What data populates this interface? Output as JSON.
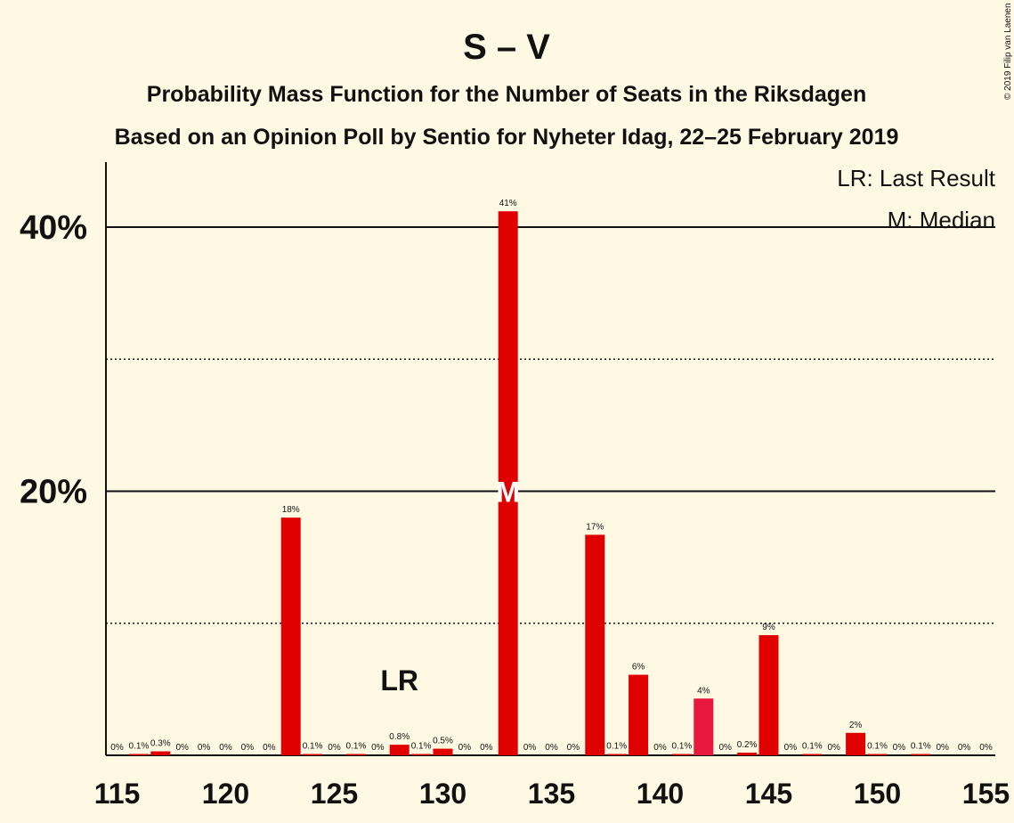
{
  "chart_data": {
    "type": "bar",
    "title": "S – V",
    "subtitle_1": "Probability Mass Function for the Number of Seats in the Riksdagen",
    "subtitle_2": "Based on an Opinion Poll by Sentio for Nyheter Idag, 22–25 February 2019",
    "copyright": "© 2019 Filip van Laenen",
    "legend": {
      "placement": "top-right",
      "last_result": "LR: Last Result",
      "median": "M: Median"
    },
    "xlim": [
      115,
      155
    ],
    "ylim": [
      0,
      45
    ],
    "x_ticks": [
      115,
      120,
      125,
      130,
      135,
      140,
      145,
      150,
      155
    ],
    "y_ticks_major": [
      {
        "value": 20,
        "label": "20%"
      },
      {
        "value": 40,
        "label": "40%"
      }
    ],
    "y_ticks_minor": [
      10,
      30
    ],
    "bars": [
      {
        "x": 115,
        "value": 0,
        "label": "0%"
      },
      {
        "x": 116,
        "value": 0.1,
        "label": "0.1%"
      },
      {
        "x": 117,
        "value": 0.3,
        "label": "0.3%"
      },
      {
        "x": 118,
        "value": 0,
        "label": "0%"
      },
      {
        "x": 119,
        "value": 0,
        "label": "0%"
      },
      {
        "x": 120,
        "value": 0,
        "label": "0%"
      },
      {
        "x": 121,
        "value": 0,
        "label": "0%"
      },
      {
        "x": 122,
        "value": 0,
        "label": "0%"
      },
      {
        "x": 123,
        "value": 18,
        "label": "18%"
      },
      {
        "x": 124,
        "value": 0.1,
        "label": "0.1%"
      },
      {
        "x": 125,
        "value": 0,
        "label": "0%"
      },
      {
        "x": 126,
        "value": 0.1,
        "label": "0.1%"
      },
      {
        "x": 127,
        "value": 0,
        "label": "0%"
      },
      {
        "x": 128,
        "value": 0.8,
        "label": "0.8%"
      },
      {
        "x": 129,
        "value": 0.1,
        "label": "0.1%"
      },
      {
        "x": 130,
        "value": 0.5,
        "label": "0.5%"
      },
      {
        "x": 131,
        "value": 0,
        "label": "0%"
      },
      {
        "x": 132,
        "value": 0,
        "label": "0%"
      },
      {
        "x": 133,
        "value": 41.2,
        "label": "41%"
      },
      {
        "x": 134,
        "value": 0,
        "label": "0%"
      },
      {
        "x": 135,
        "value": 0,
        "label": "0%"
      },
      {
        "x": 136,
        "value": 0,
        "label": "0%"
      },
      {
        "x": 137,
        "value": 16.7,
        "label": "17%"
      },
      {
        "x": 138,
        "value": 0.1,
        "label": "0.1%"
      },
      {
        "x": 139,
        "value": 6.1,
        "label": "6%"
      },
      {
        "x": 140,
        "value": 0,
        "label": "0%"
      },
      {
        "x": 141,
        "value": 0.1,
        "label": "0.1%"
      },
      {
        "x": 142,
        "value": 4.3,
        "label": "4%"
      },
      {
        "x": 143,
        "value": 0,
        "label": "0%"
      },
      {
        "x": 144,
        "value": 0.2,
        "label": "0.2%"
      },
      {
        "x": 145,
        "value": 9.1,
        "label": "9%"
      },
      {
        "x": 146,
        "value": 0,
        "label": "0%"
      },
      {
        "x": 147,
        "value": 0.1,
        "label": "0.1%"
      },
      {
        "x": 148,
        "value": 0,
        "label": "0%"
      },
      {
        "x": 149,
        "value": 1.7,
        "label": "2%"
      },
      {
        "x": 150,
        "value": 0.1,
        "label": "0.1%"
      },
      {
        "x": 151,
        "value": 0,
        "label": "0%"
      },
      {
        "x": 152,
        "value": 0.1,
        "label": "0.1%"
      },
      {
        "x": 153,
        "value": 0,
        "label": "0%"
      },
      {
        "x": 154,
        "value": 0,
        "label": "0%"
      },
      {
        "x": 155,
        "value": 0,
        "label": "0%"
      }
    ],
    "last_result": {
      "x": 128,
      "label": "LR"
    },
    "median": {
      "x": 133,
      "label": "M"
    },
    "colors": {
      "bar": "#E00000",
      "bar_alt": "#E8173C",
      "background": "#FFF9E3",
      "text": "#111111"
    }
  }
}
